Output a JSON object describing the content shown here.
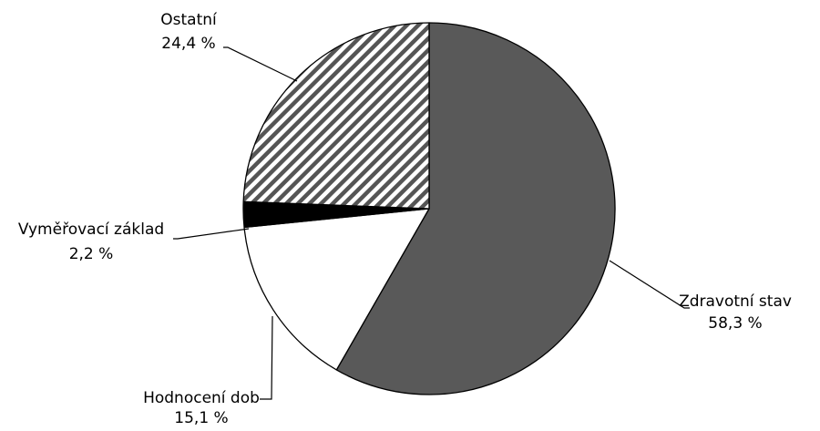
{
  "chart_data": {
    "type": "pie",
    "title": "",
    "start_angle_deg": 0,
    "direction": "clockwise",
    "slices": [
      {
        "label": "Zdravotní stav",
        "value": 58.3,
        "value_label": "58,3 %",
        "fill": "#595959",
        "pattern": "solid"
      },
      {
        "label": "Hodnocení dob",
        "value": 15.1,
        "value_label": "15,1 %",
        "fill": "#ffffff",
        "pattern": "solid"
      },
      {
        "label": "Vyměřovací základ",
        "value": 2.2,
        "value_label": "2,2 %",
        "fill": "#000000",
        "pattern": "solid"
      },
      {
        "label": "Ostatní",
        "value": 24.4,
        "value_label": "24,4 %",
        "fill": "#ffffff",
        "pattern": "diagonal-stripes"
      }
    ],
    "colors": {
      "outline": "#000000",
      "stripe": "#555555"
    }
  }
}
